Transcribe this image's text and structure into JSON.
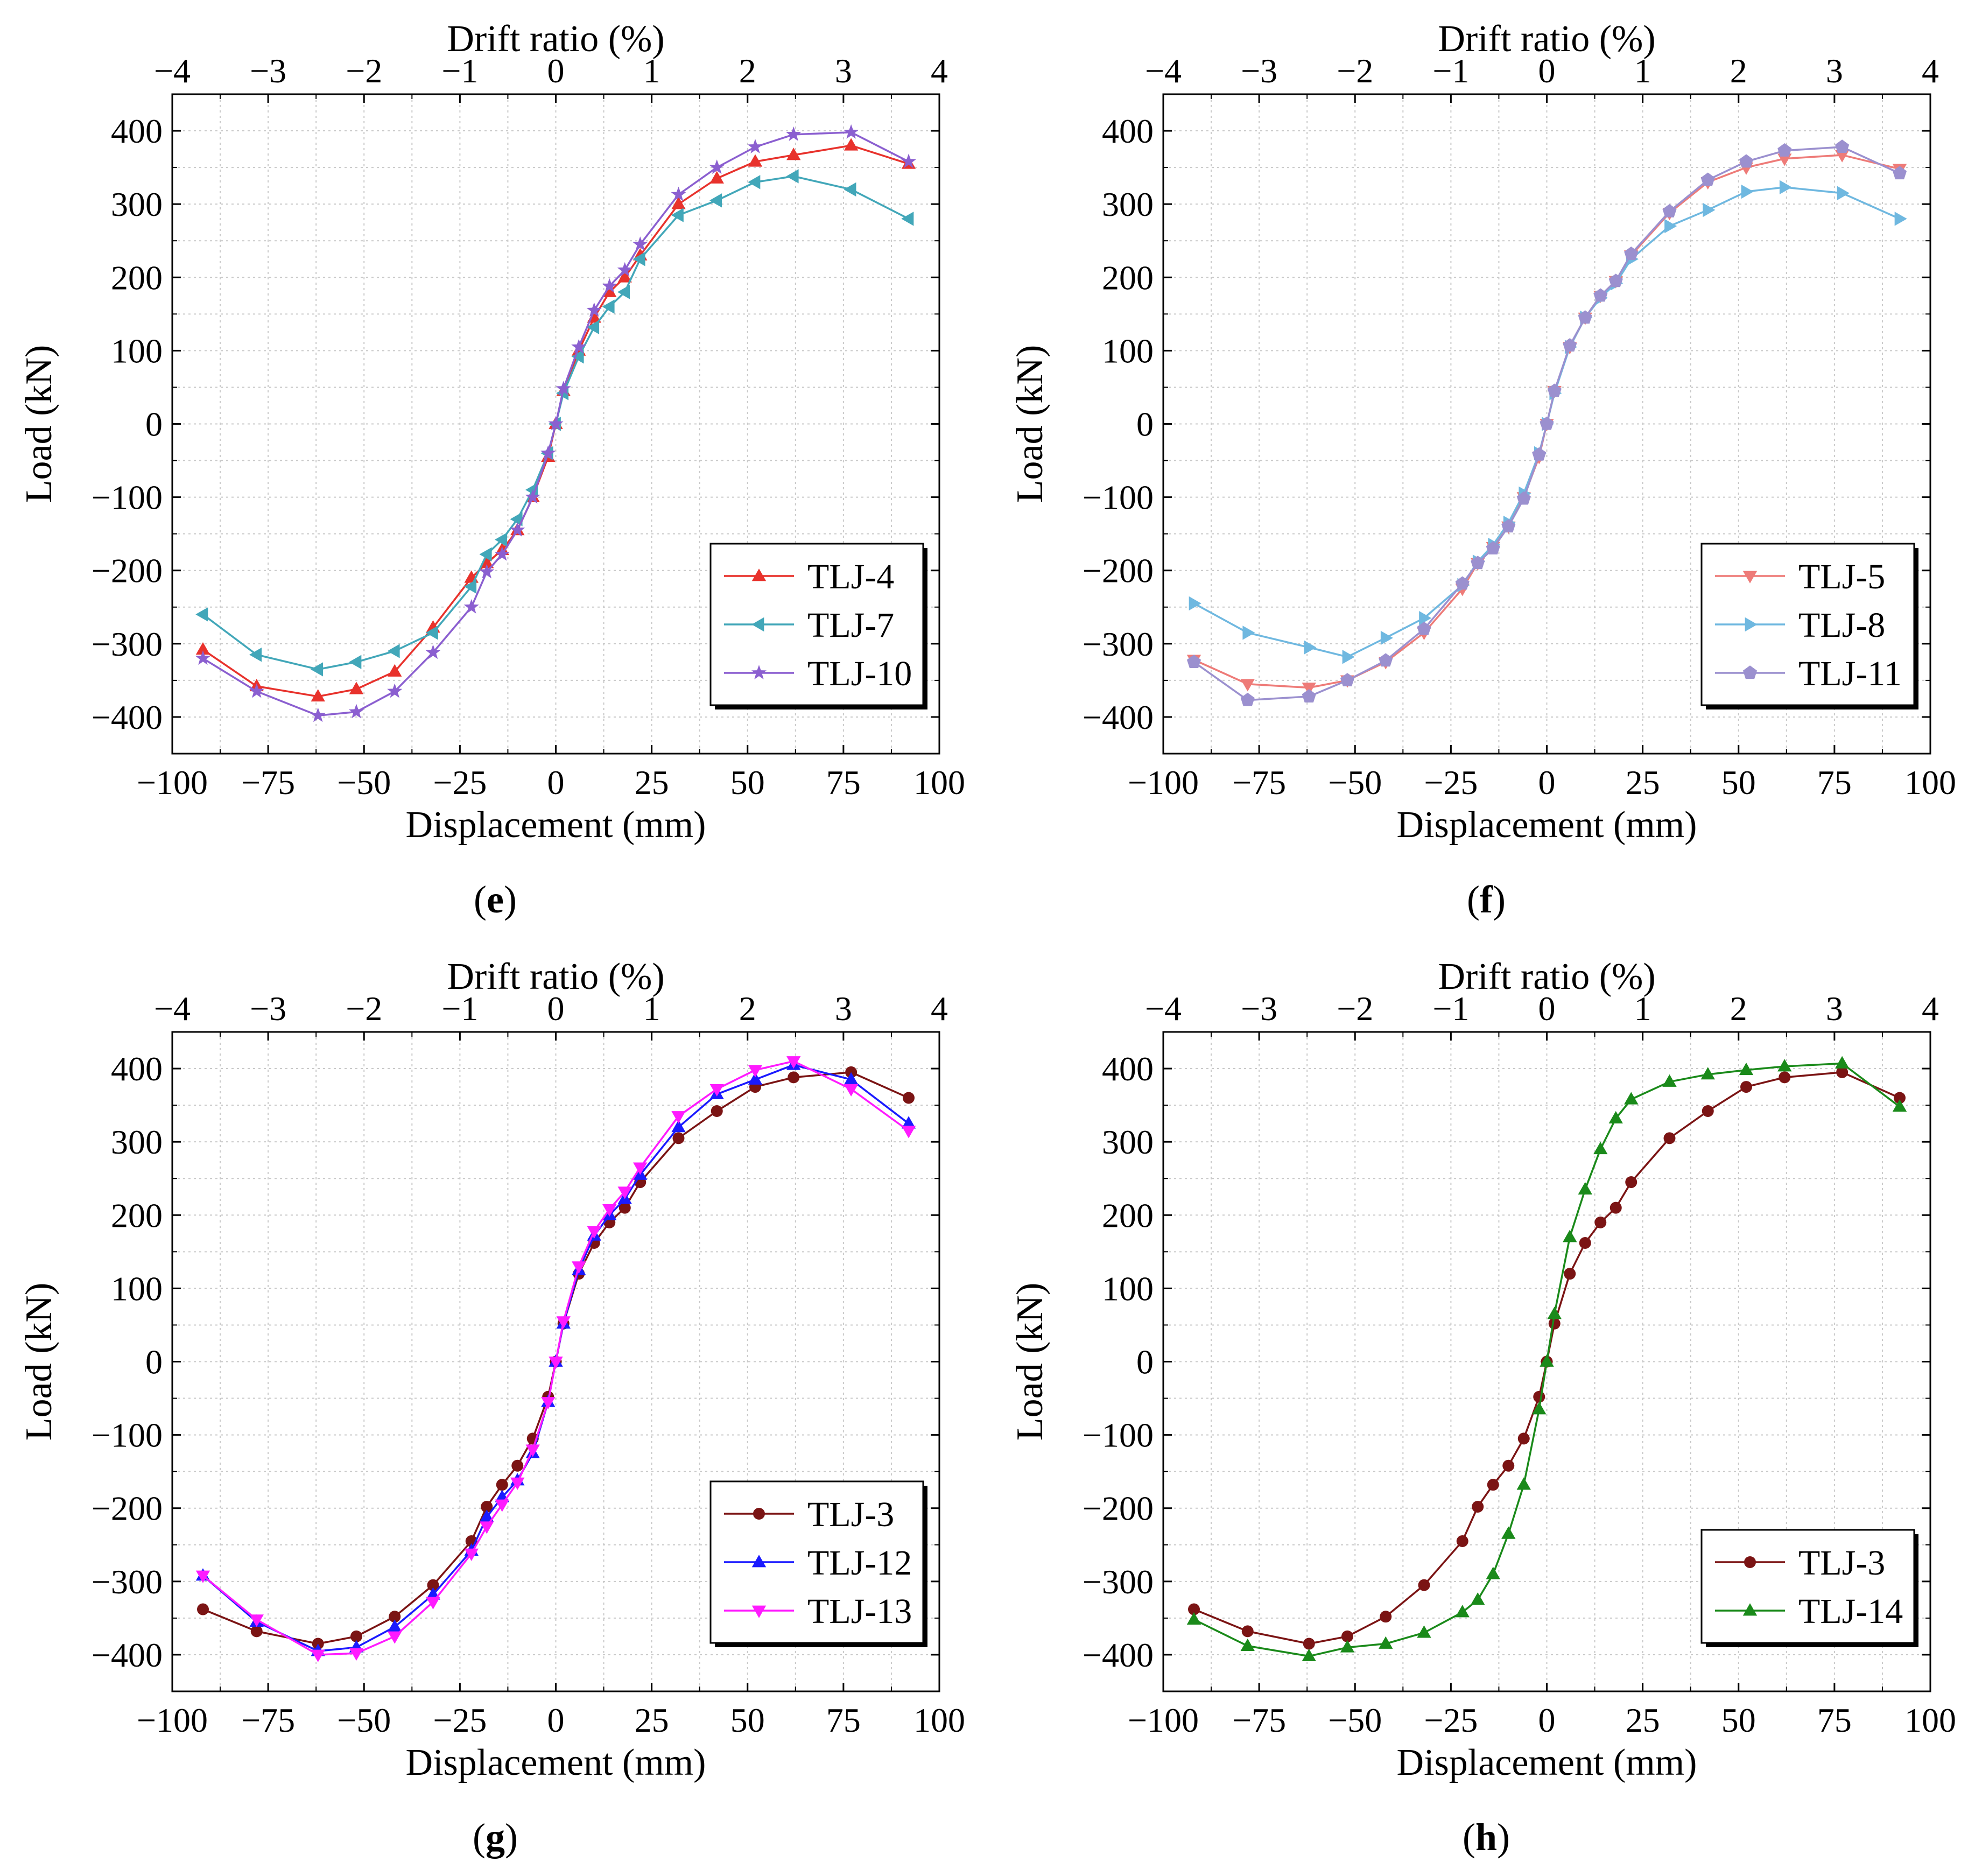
{
  "figure": {
    "x_axis_label": "Displacement (mm)",
    "top_axis_label": "Drift ratio (%)",
    "y_axis_label": "Load (kN)"
  },
  "chart_data": [
    {
      "panel": "e",
      "label_open": "(",
      "label_letter": "e",
      "label_close": ")",
      "type": "line",
      "xlabel": "Displacement (mm)",
      "ylabel": "Load (kN)",
      "top_xlabel": "Drift ratio (%)",
      "xlim": [
        -100,
        100
      ],
      "ylim": [
        -450,
        450
      ],
      "top_xlim": [
        -4,
        4
      ],
      "x_ticks": [
        "−100",
        "−75",
        "−50",
        "−25",
        "0",
        "25",
        "50",
        "75",
        "100"
      ],
      "x_tick_values": [
        -100,
        -75,
        -50,
        -25,
        0,
        25,
        50,
        75,
        100
      ],
      "y_ticks": [
        "400",
        "300",
        "200",
        "100",
        "0",
        "−100",
        "−200",
        "−300",
        "−400"
      ],
      "y_tick_values": [
        400,
        300,
        200,
        100,
        0,
        -100,
        -200,
        -300,
        -400
      ],
      "top_ticks": [
        "−4",
        "−3",
        "−2",
        "−1",
        "0",
        "1",
        "2",
        "3",
        "4"
      ],
      "top_tick_values": [
        -4,
        -3,
        -2,
        -1,
        0,
        1,
        2,
        3,
        4
      ],
      "grid": true,
      "legend_position": "bottom-right",
      "series": [
        {
          "name": "TLJ-4",
          "color": "#e8322c",
          "marker": "triangle-up",
          "x": [
            -92,
            -78,
            -62,
            -52,
            -42,
            -32,
            -22,
            -18,
            -14,
            -10,
            -6,
            -2,
            0,
            2,
            6,
            10,
            14,
            18,
            22,
            32,
            42,
            52,
            62,
            77,
            92
          ],
          "y": [
            -308,
            -358,
            -372,
            -362,
            -338,
            -278,
            -210,
            -190,
            -172,
            -145,
            -100,
            -45,
            0,
            45,
            100,
            145,
            180,
            200,
            230,
            300,
            335,
            358,
            367,
            380,
            355
          ]
        },
        {
          "name": "TLJ-7",
          "color": "#42a7b9",
          "marker": "triangle-left",
          "x": [
            -92,
            -78,
            -62,
            -52,
            -42,
            -32,
            -22,
            -18,
            -14,
            -10,
            -6,
            -2,
            0,
            2,
            6,
            10,
            14,
            18,
            22,
            32,
            42,
            52,
            62,
            77,
            92
          ],
          "y": [
            -260,
            -315,
            -335,
            -325,
            -310,
            -285,
            -222,
            -178,
            -158,
            -130,
            -90,
            -40,
            0,
            42,
            92,
            132,
            160,
            180,
            225,
            285,
            305,
            330,
            338,
            320,
            280
          ]
        },
        {
          "name": "TLJ-10",
          "color": "#8b5fd0",
          "marker": "star",
          "x": [
            -92,
            -78,
            -62,
            -52,
            -42,
            -32,
            -22,
            -18,
            -14,
            -10,
            -6,
            -2,
            0,
            2,
            6,
            10,
            14,
            18,
            22,
            32,
            42,
            52,
            62,
            77,
            92
          ],
          "y": [
            -320,
            -365,
            -398,
            -393,
            -365,
            -312,
            -250,
            -202,
            -178,
            -145,
            -100,
            -40,
            0,
            48,
            105,
            155,
            188,
            210,
            245,
            313,
            350,
            378,
            395,
            398,
            358
          ]
        }
      ]
    },
    {
      "panel": "f",
      "label_open": "(",
      "label_letter": "f",
      "label_close": ")",
      "type": "line",
      "xlabel": "Displacement (mm)",
      "ylabel": "Load (kN)",
      "top_xlabel": "Drift ratio (%)",
      "xlim": [
        -100,
        100
      ],
      "ylim": [
        -450,
        450
      ],
      "top_xlim": [
        -4,
        4
      ],
      "x_ticks": [
        "−100",
        "−75",
        "−50",
        "−25",
        "0",
        "25",
        "50",
        "75",
        "100"
      ],
      "x_tick_values": [
        -100,
        -75,
        -50,
        -25,
        0,
        25,
        50,
        75,
        100
      ],
      "y_ticks": [
        "400",
        "300",
        "200",
        "100",
        "0",
        "−100",
        "−200",
        "−300",
        "−400"
      ],
      "y_tick_values": [
        400,
        300,
        200,
        100,
        0,
        -100,
        -200,
        -300,
        -400
      ],
      "top_ticks": [
        "−4",
        "−3",
        "−2",
        "−1",
        "0",
        "1",
        "2",
        "3",
        "4"
      ],
      "top_tick_values": [
        -4,
        -3,
        -2,
        -1,
        0,
        1,
        2,
        3,
        4
      ],
      "grid": true,
      "legend_position": "bottom-right",
      "series": [
        {
          "name": "TLJ-5",
          "color": "#ee7b78",
          "marker": "triangle-down",
          "x": [
            -92,
            -78,
            -62,
            -52,
            -42,
            -32,
            -22,
            -18,
            -14,
            -10,
            -6,
            -2,
            0,
            2,
            6,
            10,
            14,
            18,
            22,
            32,
            42,
            52,
            62,
            77,
            92
          ],
          "y": [
            -322,
            -355,
            -360,
            -350,
            -325,
            -285,
            -225,
            -190,
            -168,
            -140,
            -100,
            -45,
            0,
            45,
            105,
            145,
            175,
            195,
            230,
            288,
            330,
            350,
            362,
            367,
            348
          ]
        },
        {
          "name": "TLJ-8",
          "color": "#6fb8e0",
          "marker": "triangle-right",
          "x": [
            -92,
            -78,
            -62,
            -52,
            -42,
            -32,
            -22,
            -18,
            -14,
            -10,
            -6,
            -2,
            0,
            2,
            6,
            10,
            14,
            18,
            22,
            32,
            42,
            52,
            62,
            77,
            92
          ],
          "y": [
            -245,
            -285,
            -305,
            -318,
            -292,
            -265,
            -220,
            -188,
            -165,
            -135,
            -95,
            -40,
            0,
            42,
            105,
            145,
            172,
            192,
            225,
            270,
            292,
            317,
            323,
            315,
            280
          ]
        },
        {
          "name": "TLJ-11",
          "color": "#9b90cf",
          "marker": "pentagon",
          "x": [
            -92,
            -78,
            -62,
            -52,
            -42,
            -32,
            -22,
            -18,
            -14,
            -10,
            -6,
            -2,
            0,
            2,
            6,
            10,
            14,
            18,
            22,
            32,
            42,
            52,
            62,
            77,
            92
          ],
          "y": [
            -325,
            -377,
            -372,
            -350,
            -323,
            -280,
            -218,
            -190,
            -170,
            -140,
            -102,
            -42,
            0,
            45,
            107,
            145,
            175,
            195,
            232,
            290,
            333,
            358,
            373,
            378,
            342
          ]
        }
      ]
    },
    {
      "panel": "g",
      "label_open": "(",
      "label_letter": "g",
      "label_close": ")",
      "type": "line",
      "xlabel": "Displacement (mm)",
      "ylabel": "Load (kN)",
      "top_xlabel": "Drift ratio (%)",
      "xlim": [
        -100,
        100
      ],
      "ylim": [
        -450,
        450
      ],
      "top_xlim": [
        -4,
        4
      ],
      "x_ticks": [
        "−100",
        "−75",
        "−50",
        "−25",
        "0",
        "25",
        "50",
        "75",
        "100"
      ],
      "x_tick_values": [
        -100,
        -75,
        -50,
        -25,
        0,
        25,
        50,
        75,
        100
      ],
      "y_ticks": [
        "400",
        "300",
        "200",
        "100",
        "0",
        "−100",
        "−200",
        "−300",
        "−400"
      ],
      "y_tick_values": [
        400,
        300,
        200,
        100,
        0,
        -100,
        -200,
        -300,
        -400
      ],
      "top_ticks": [
        "−4",
        "−3",
        "−2",
        "−1",
        "0",
        "1",
        "2",
        "3",
        "4"
      ],
      "top_tick_values": [
        -4,
        -3,
        -2,
        -1,
        0,
        1,
        2,
        3,
        4
      ],
      "grid": true,
      "legend_position": "bottom-right",
      "series": [
        {
          "name": "TLJ-3",
          "color": "#7b1414",
          "marker": "circle",
          "x": [
            -92,
            -78,
            -62,
            -52,
            -42,
            -32,
            -22,
            -18,
            -14,
            -10,
            -6,
            -2,
            0,
            2,
            6,
            10,
            14,
            18,
            22,
            32,
            42,
            52,
            62,
            77,
            92
          ],
          "y": [
            -338,
            -368,
            -385,
            -375,
            -348,
            -305,
            -245,
            -198,
            -168,
            -142,
            -105,
            -48,
            0,
            52,
            120,
            162,
            190,
            210,
            245,
            305,
            342,
            375,
            388,
            395,
            360
          ]
        },
        {
          "name": "TLJ-12",
          "color": "#1a1aff",
          "marker": "triangle-up",
          "x": [
            -92,
            -78,
            -62,
            -52,
            -42,
            -32,
            -22,
            -18,
            -14,
            -10,
            -6,
            -2,
            0,
            2,
            6,
            10,
            14,
            18,
            22,
            32,
            42,
            52,
            62,
            77,
            92
          ],
          "y": [
            -292,
            -355,
            -395,
            -390,
            -362,
            -318,
            -258,
            -212,
            -185,
            -162,
            -125,
            -55,
            0,
            52,
            125,
            172,
            200,
            222,
            255,
            320,
            365,
            385,
            405,
            385,
            325
          ]
        },
        {
          "name": "TLJ-13",
          "color": "#ff1aff",
          "marker": "triangle-down",
          "x": [
            -92,
            -78,
            -62,
            -52,
            -42,
            -32,
            -22,
            -18,
            -14,
            -10,
            -6,
            -2,
            0,
            2,
            6,
            10,
            14,
            18,
            22,
            32,
            42,
            52,
            62,
            77,
            92
          ],
          "y": [
            -292,
            -352,
            -400,
            -398,
            -375,
            -328,
            -262,
            -225,
            -195,
            -165,
            -120,
            -55,
            0,
            55,
            130,
            178,
            208,
            232,
            265,
            335,
            372,
            398,
            410,
            372,
            315
          ]
        }
      ]
    },
    {
      "panel": "h",
      "label_open": "(",
      "label_letter": "h",
      "label_close": ")",
      "type": "line",
      "xlabel": "Displacement (mm)",
      "ylabel": "Load (kN)",
      "top_xlabel": "Drift ratio (%)",
      "xlim": [
        -100,
        100
      ],
      "ylim": [
        -450,
        450
      ],
      "top_xlim": [
        -4,
        4
      ],
      "x_ticks": [
        "−100",
        "−75",
        "−50",
        "−25",
        "0",
        "25",
        "50",
        "75",
        "100"
      ],
      "x_tick_values": [
        -100,
        -75,
        -50,
        -25,
        0,
        25,
        50,
        75,
        100
      ],
      "y_ticks": [
        "400",
        "300",
        "200",
        "100",
        "0",
        "−100",
        "−200",
        "−300",
        "−400"
      ],
      "y_tick_values": [
        400,
        300,
        200,
        100,
        0,
        -100,
        -200,
        -300,
        -400
      ],
      "top_ticks": [
        "−4",
        "−3",
        "−2",
        "−1",
        "0",
        "1",
        "2",
        "3",
        "4"
      ],
      "top_tick_values": [
        -4,
        -3,
        -2,
        -1,
        0,
        1,
        2,
        3,
        4
      ],
      "grid": true,
      "legend_position": "bottom-right",
      "series": [
        {
          "name": "TLJ-3",
          "color": "#7b1414",
          "marker": "circle",
          "x": [
            -92,
            -78,
            -62,
            -52,
            -42,
            -32,
            -22,
            -18,
            -14,
            -10,
            -6,
            -2,
            0,
            2,
            6,
            10,
            14,
            18,
            22,
            32,
            42,
            52,
            62,
            77,
            92
          ],
          "y": [
            -338,
            -368,
            -385,
            -375,
            -348,
            -305,
            -245,
            -198,
            -168,
            -142,
            -105,
            -48,
            0,
            52,
            120,
            162,
            190,
            210,
            245,
            305,
            342,
            375,
            388,
            395,
            360
          ]
        },
        {
          "name": "TLJ-14",
          "color": "#1a8a1a",
          "marker": "triangle-up",
          "x": [
            -92,
            -78,
            -62,
            -52,
            -42,
            -32,
            -22,
            -18,
            -14,
            -10,
            -6,
            -2,
            0,
            2,
            6,
            10,
            14,
            18,
            22,
            32,
            42,
            52,
            62,
            77,
            92
          ],
          "y": [
            -352,
            -388,
            -402,
            -390,
            -385,
            -370,
            -342,
            -325,
            -290,
            -235,
            -168,
            -65,
            0,
            65,
            170,
            235,
            290,
            332,
            358,
            382,
            392,
            398,
            403,
            407,
            348
          ]
        }
      ]
    }
  ]
}
